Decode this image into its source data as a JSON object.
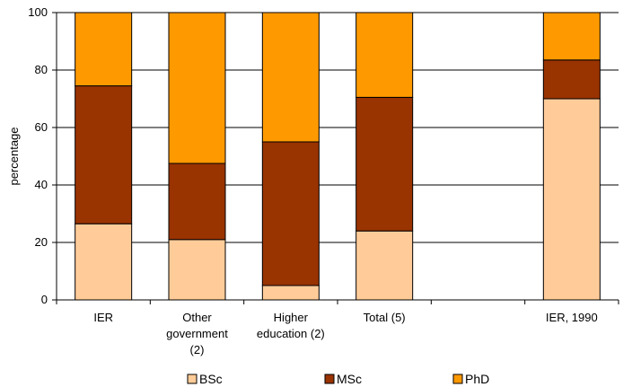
{
  "chart_data": {
    "type": "bar",
    "stacked": true,
    "ylabel": "percentage",
    "xlabel": "",
    "ylim": [
      0,
      100
    ],
    "yticks": [
      0,
      20,
      40,
      60,
      80,
      100
    ],
    "grid": true,
    "legend_position": "bottom",
    "categories": [
      [
        "IER"
      ],
      [
        "Other",
        "government",
        "(2)"
      ],
      [
        "Higher",
        "education (2)"
      ],
      [
        "Total (5)"
      ],
      [],
      [
        "IER, 1990"
      ]
    ],
    "series": [
      {
        "name": "BSc",
        "color": "#FFCC99",
        "values": [
          26.5,
          21,
          5,
          24,
          null,
          70
        ]
      },
      {
        "name": "MSc",
        "color": "#993300",
        "values": [
          48,
          26.5,
          50,
          46.5,
          null,
          13.5
        ]
      },
      {
        "name": "PhD",
        "color": "#FF9900",
        "values": [
          25.5,
          52.5,
          45,
          29.5,
          null,
          16.5
        ]
      }
    ]
  }
}
